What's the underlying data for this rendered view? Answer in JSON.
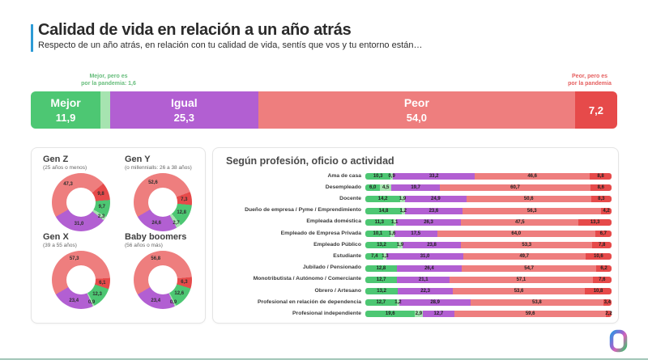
{
  "header": {
    "title": "Calidad de vida en relación a un año atrás",
    "subtitle": "Respecto de un año atrás, en relación con tu calidad de vida, sentís que vos y tu entorno están…"
  },
  "annotations": {
    "mejor_pandemia": {
      "line1": "Mejor, pero es",
      "line2": "por la pandemia: 1,6"
    },
    "peor_pandemia": {
      "line1": "Peor, pero es",
      "line2": "por la pandemia"
    }
  },
  "colors": {
    "mejor": "#4dc773",
    "mejor_pandemia": "#a6e4b0",
    "igual": "#b25fd2",
    "peor": "#ee7e7e",
    "peor_pandemia": "#e64a4a",
    "accent_blue": "#2d9bd6",
    "annotation_green": "#67bd7c",
    "annotation_red": "#e55f5f",
    "footer_line": "#a2c6b8"
  },
  "chart_data": [
    {
      "type": "bar",
      "subtype": "stacked-horizontal-100",
      "name": "overall-quality-of-life",
      "segments": [
        {
          "key": "mejor",
          "name": "Mejor",
          "value": 11.9,
          "display_name": "Mejor",
          "display_value": "11,9"
        },
        {
          "key": "mejor_pandemia",
          "name": "Mejor, pero es por la pandemia",
          "value": 1.6,
          "display_name": null,
          "display_value": null
        },
        {
          "key": "igual",
          "name": "Igual",
          "value": 25.3,
          "display_name": "Igual",
          "display_value": "25,3"
        },
        {
          "key": "peor",
          "name": "Peor",
          "value": 54.0,
          "display_name": "Peor",
          "display_value": "54,0"
        },
        {
          "key": "peor_pandemia",
          "name": "Peor, pero es por la pandemia",
          "value": 7.2,
          "display_name": null,
          "display_value": "7,2"
        }
      ]
    },
    {
      "type": "pie",
      "subtype": "donut",
      "start_angle_deg": 240,
      "charts": [
        {
          "title": "Gen Z",
          "subtitle": "(25 años o menos)",
          "segments": [
            {
              "key": "peor",
              "value": 47.3,
              "label": "47,3"
            },
            {
              "key": "peor_pandemia",
              "value": 9.8,
              "label": "9,8"
            },
            {
              "key": "mejor",
              "value": 9.7,
              "label": "9,7"
            },
            {
              "key": "mejor_pandemia",
              "value": 2.3,
              "label": "2,3"
            },
            {
              "key": "igual",
              "value": 31.0,
              "label": "31,0"
            }
          ]
        },
        {
          "title": "Gen Y",
          "subtitle": "(o millennialls: 26 a 38 años)",
          "segments": [
            {
              "key": "peor",
              "value": 52.6,
              "label": "52,6"
            },
            {
              "key": "peor_pandemia",
              "value": 7.3,
              "label": "7,3"
            },
            {
              "key": "mejor",
              "value": 12.8,
              "label": "12,8"
            },
            {
              "key": "mejor_pandemia",
              "value": 2.7,
              "label": "2,7"
            },
            {
              "key": "igual",
              "value": 24.6,
              "label": "24,6"
            }
          ]
        },
        {
          "title": "Gen X",
          "subtitle": "(39 a 55 años)",
          "segments": [
            {
              "key": "peor",
              "value": 57.3,
              "label": "57,3"
            },
            {
              "key": "peor_pandemia",
              "value": 6.1,
              "label": "6,1"
            },
            {
              "key": "mejor",
              "value": 12.3,
              "label": "12,3"
            },
            {
              "key": "mejor_pandemia",
              "value": 0.9,
              "label": "0,9"
            },
            {
              "key": "igual",
              "value": 23.4,
              "label": "23,4"
            }
          ]
        },
        {
          "title": "Baby boomers",
          "subtitle": "(56 años o más)",
          "segments": [
            {
              "key": "peor",
              "value": 56.8,
              "label": "56,8"
            },
            {
              "key": "peor_pandemia",
              "value": 6.3,
              "label": "6,3"
            },
            {
              "key": "mejor",
              "value": 12.6,
              "label": "12,6"
            },
            {
              "key": "mejor_pandemia",
              "value": 0.9,
              "label": "0,9"
            },
            {
              "key": "igual",
              "value": 23.4,
              "label": "23,4"
            }
          ]
        }
      ]
    },
    {
      "type": "bar",
      "subtype": "stacked-horizontal-100",
      "title": "Según profesión, oficio o actividad",
      "rows": [
        {
          "label": "Ama de casa",
          "segments": [
            {
              "key": "mejor",
              "value": 10.3,
              "label": "10,3"
            },
            {
              "key": "mejor_pandemia",
              "value": 0.9,
              "label": "0,9"
            },
            {
              "key": "igual",
              "value": 33.2,
              "label": "33,2"
            },
            {
              "key": "peor",
              "value": 46.6,
              "label": "46,6"
            },
            {
              "key": "peor_pandemia",
              "value": 8.8,
              "label": "8,8"
            }
          ]
        },
        {
          "label": "Desempleado",
          "segments": [
            {
              "key": "mejor",
              "value": 6.0,
              "label": "6,0"
            },
            {
              "key": "mejor_pandemia",
              "value": 4.5,
              "label": "4,5"
            },
            {
              "key": "igual",
              "value": 19.7,
              "label": "19,7"
            },
            {
              "key": "peor",
              "value": 60.7,
              "label": "60,7"
            },
            {
              "key": "peor_pandemia",
              "value": 8.6,
              "label": "8,6"
            }
          ]
        },
        {
          "label": "Docente",
          "segments": [
            {
              "key": "mejor",
              "value": 14.2,
              "label": "14,2"
            },
            {
              "key": "mejor_pandemia",
              "value": 1.9,
              "label": "1,9"
            },
            {
              "key": "igual",
              "value": 24.9,
              "label": "24,9"
            },
            {
              "key": "peor",
              "value": 50.6,
              "label": "50,6"
            },
            {
              "key": "peor_pandemia",
              "value": 8.3,
              "label": "8,3"
            }
          ]
        },
        {
          "label": "Dueño de empresa / Pyme / Emprendimiento",
          "segments": [
            {
              "key": "mejor",
              "value": 14.8,
              "label": "14,8"
            },
            {
              "key": "mejor_pandemia",
              "value": 1.2,
              "label": "1,2"
            },
            {
              "key": "igual",
              "value": 23.6,
              "label": "23,6"
            },
            {
              "key": "peor",
              "value": 56.3,
              "label": "56,3"
            },
            {
              "key": "peor_pandemia",
              "value": 4.2,
              "label": "4,2"
            }
          ]
        },
        {
          "label": "Empleada doméstica",
          "segments": [
            {
              "key": "mejor",
              "value": 11.3,
              "label": "11,3"
            },
            {
              "key": "mejor_pandemia",
              "value": 1.1,
              "label": "1,1"
            },
            {
              "key": "igual",
              "value": 26.3,
              "label": "26,3"
            },
            {
              "key": "peor",
              "value": 47.5,
              "label": "47,5"
            },
            {
              "key": "peor_pandemia",
              "value": 13.3,
              "label": "13,3"
            }
          ]
        },
        {
          "label": "Empleado de Empresa Privada",
          "segments": [
            {
              "key": "mejor",
              "value": 10.1,
              "label": "10,1"
            },
            {
              "key": "mejor_pandemia",
              "value": 1.6,
              "label": "1,6"
            },
            {
              "key": "igual",
              "value": 17.5,
              "label": "17,5"
            },
            {
              "key": "peor",
              "value": 64.0,
              "label": "64,0"
            },
            {
              "key": "peor_pandemia",
              "value": 6.7,
              "label": "6,7"
            }
          ]
        },
        {
          "label": "Empleado Público",
          "segments": [
            {
              "key": "mejor",
              "value": 13.2,
              "label": "13,2"
            },
            {
              "key": "mejor_pandemia",
              "value": 1.9,
              "label": "1,9"
            },
            {
              "key": "igual",
              "value": 23.8,
              "label": "23,8"
            },
            {
              "key": "peor",
              "value": 53.3,
              "label": "53,3"
            },
            {
              "key": "peor_pandemia",
              "value": 7.8,
              "label": "7,8"
            }
          ]
        },
        {
          "label": "Estudiante",
          "segments": [
            {
              "key": "mejor",
              "value": 7.4,
              "label": "7,4"
            },
            {
              "key": "mejor_pandemia",
              "value": 1.3,
              "label": "1,3"
            },
            {
              "key": "igual",
              "value": 31.0,
              "label": "31,0"
            },
            {
              "key": "peor",
              "value": 49.7,
              "label": "49,7"
            },
            {
              "key": "peor_pandemia",
              "value": 10.6,
              "label": "10,6"
            }
          ]
        },
        {
          "label": "Jubilado / Pensionado",
          "segments": [
            {
              "key": "mejor",
              "value": 12.8,
              "label": "12,8"
            },
            {
              "key": "igual",
              "value": 26.4,
              "label": "26,4"
            },
            {
              "key": "peor",
              "value": 54.7,
              "label": "54,7"
            },
            {
              "key": "peor_pandemia",
              "value": 6.2,
              "label": "6,2"
            }
          ]
        },
        {
          "label": "Monotributista / Autónomo / Comerciante",
          "segments": [
            {
              "key": "mejor",
              "value": 12.7,
              "label": "12,7"
            },
            {
              "key": "igual",
              "value": 21.1,
              "label": "21,1"
            },
            {
              "key": "peor",
              "value": 57.1,
              "label": "57,1"
            },
            {
              "key": "peor_pandemia",
              "value": 7.6,
              "label": "7,6"
            }
          ]
        },
        {
          "label": "Obrero / Artesano",
          "segments": [
            {
              "key": "mejor",
              "value": 13.2,
              "label": "13,2"
            },
            {
              "key": "igual",
              "value": 22.3,
              "label": "22,3"
            },
            {
              "key": "peor",
              "value": 53.6,
              "label": "53,6"
            },
            {
              "key": "peor_pandemia",
              "value": 10.8,
              "label": "10,8"
            }
          ]
        },
        {
          "label": "Profesional en relación de dependencia",
          "segments": [
            {
              "key": "mejor",
              "value": 12.7,
              "label": "12,7"
            },
            {
              "key": "mejor_pandemia",
              "value": 1.2,
              "label": "1,2"
            },
            {
              "key": "igual",
              "value": 28.9,
              "label": "28,9"
            },
            {
              "key": "peor",
              "value": 53.8,
              "label": "53,8"
            },
            {
              "key": "peor_pandemia",
              "value": 3.4,
              "label": "3,4"
            }
          ]
        },
        {
          "label": "Profesional independiente",
          "segments": [
            {
              "key": "mejor",
              "value": 19.6,
              "label": "19,6"
            },
            {
              "key": "mejor_pandemia",
              "value": 2.9,
              "label": "2,9"
            },
            {
              "key": "igual",
              "value": 12.7,
              "label": "12,7"
            },
            {
              "key": "peor",
              "value": 59.6,
              "label": "59,6"
            },
            {
              "key": "peor_pandemia",
              "value": 2.2,
              "label": "2,2"
            }
          ]
        }
      ]
    }
  ]
}
